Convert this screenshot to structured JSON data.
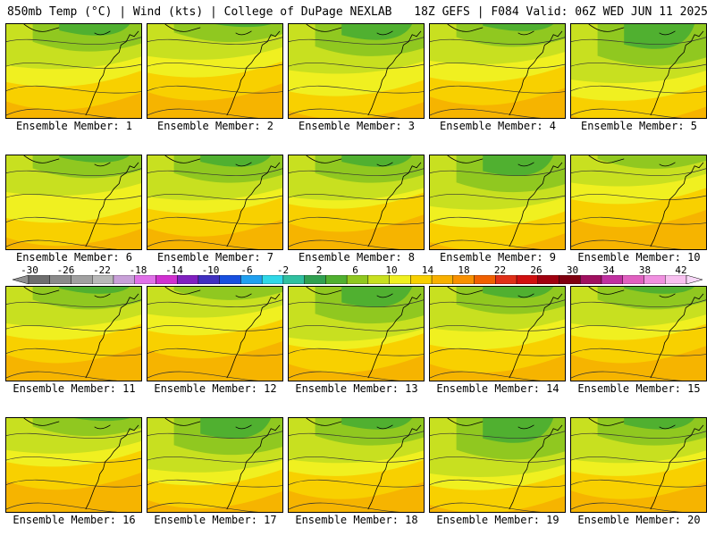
{
  "header": {
    "left": "850mb Temp (°C) | Wind (kts) | College of DuPage NEXLAB",
    "right": "18Z GEFS | F084 Valid: 06Z WED JUN 11 2025"
  },
  "panels": [
    {
      "label": "Ensemble Member: 1"
    },
    {
      "label": "Ensemble Member: 2"
    },
    {
      "label": "Ensemble Member: 3"
    },
    {
      "label": "Ensemble Member: 4"
    },
    {
      "label": "Ensemble Member: 5"
    },
    {
      "label": "Ensemble Member: 6"
    },
    {
      "label": "Ensemble Member: 7"
    },
    {
      "label": "Ensemble Member: 8"
    },
    {
      "label": "Ensemble Member: 9"
    },
    {
      "label": "Ensemble Member: 10"
    },
    {
      "label": "Ensemble Member: 11"
    },
    {
      "label": "Ensemble Member: 12"
    },
    {
      "label": "Ensemble Member: 13"
    },
    {
      "label": "Ensemble Member: 14"
    },
    {
      "label": "Ensemble Member: 15"
    },
    {
      "label": "Ensemble Member: 16"
    },
    {
      "label": "Ensemble Member: 17"
    },
    {
      "label": "Ensemble Member: 18"
    },
    {
      "label": "Ensemble Member: 19"
    },
    {
      "label": "Ensemble Member: 20"
    }
  ],
  "colorbar": {
    "labels": [
      "-30",
      "-26",
      "-22",
      "-18",
      "-14",
      "-10",
      "-6",
      "-2",
      "2",
      "6",
      "10",
      "14",
      "18",
      "22",
      "26",
      "30",
      "34",
      "38",
      "42"
    ],
    "colors": [
      "#6e6e6e",
      "#8a8a8a",
      "#a0a0a0",
      "#b8b8b8",
      "#c8a0d8",
      "#e070e8",
      "#d030d0",
      "#8020c0",
      "#4030c0",
      "#1850e0",
      "#20a0f0",
      "#30d8e8",
      "#30c0a0",
      "#30a050",
      "#50b030",
      "#90c820",
      "#c8e020",
      "#f0f020",
      "#f8d000",
      "#f8b000",
      "#f89000",
      "#f06000",
      "#e03018",
      "#d01010",
      "#a00010",
      "#800010",
      "#a01060",
      "#c030a0",
      "#e060c0",
      "#f090e0",
      "#f8c0f0"
    ],
    "arrow_colors": {
      "low": "#909090",
      "high": "#f8d8f8"
    }
  },
  "map_colors": {
    "orange": "#f6b400",
    "gold": "#f8d000",
    "yellow": "#f0f020",
    "lightgreen": "#c8e020",
    "green": "#90c820",
    "darkgreen": "#50b030"
  }
}
